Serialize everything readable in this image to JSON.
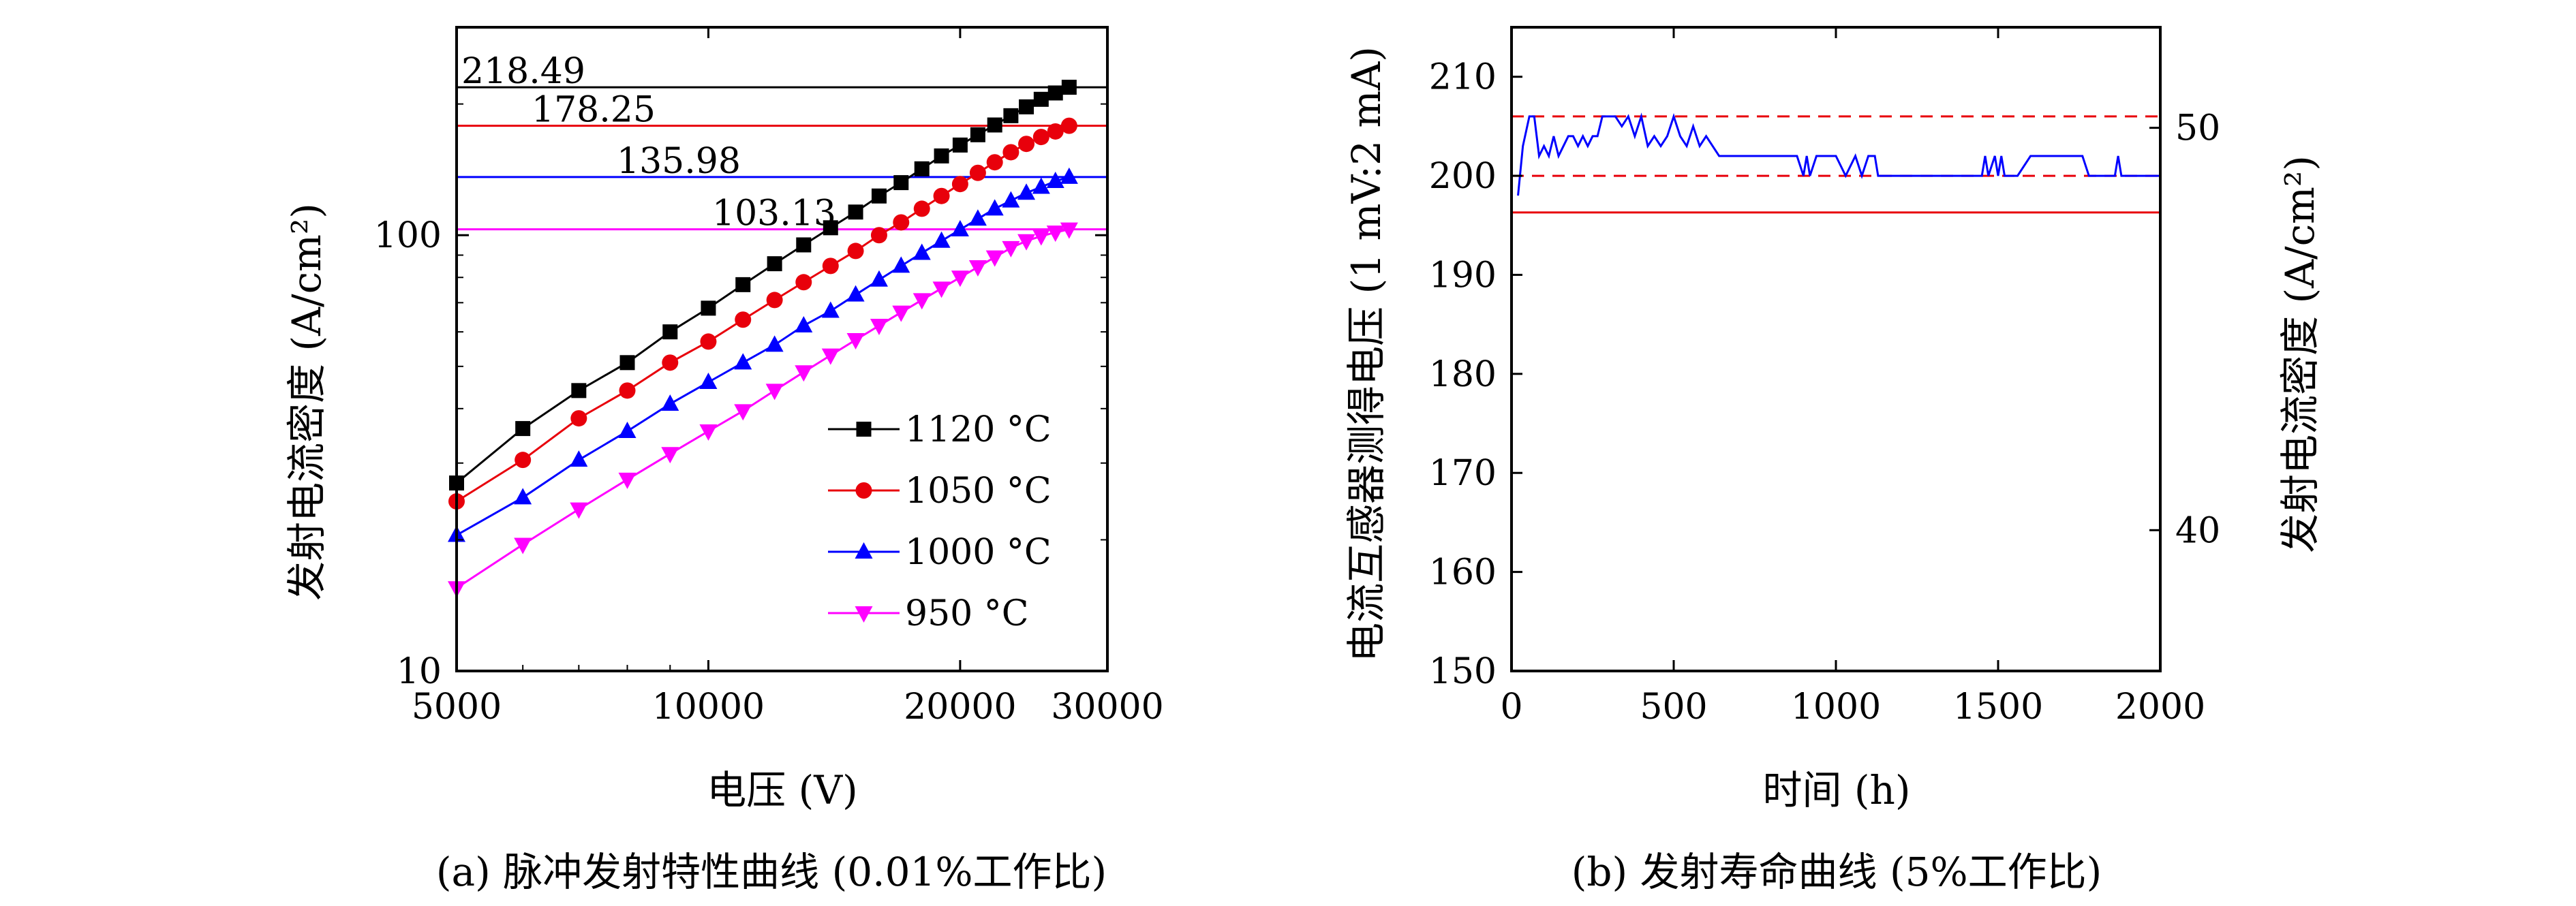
{
  "chart_data": [
    {
      "type": "line",
      "xlabel": "电压 (V)",
      "ylabel": "发射电流密度 (A/cm²)",
      "caption": "(a) 脉冲发射特性曲线 (0.01%工作比)",
      "x_scale": "log",
      "y_scale": "log",
      "xlim": [
        5000,
        30000
      ],
      "ylim": [
        10,
        300
      ],
      "x_tick_labels": [
        "5000",
        "10000",
        "20000",
        "30000"
      ],
      "y_tick_labels": [
        "10",
        "100"
      ],
      "legend_position": "bottom-right",
      "reference_lines": [
        {
          "value": 218.49,
          "label": "218.49",
          "color": "#000000"
        },
        {
          "value": 178.25,
          "label": "178.25",
          "color": "#e8000b"
        },
        {
          "value": 135.98,
          "label": "135.98",
          "color": "#0000ff"
        },
        {
          "value": 103.13,
          "label": "103.13",
          "color": "#ff00ff"
        }
      ],
      "series": [
        {
          "name": "1120 °C",
          "color": "#000000",
          "marker": "square",
          "x": [
            5000,
            6000,
            7000,
            8000,
            9000,
            10000,
            11000,
            12000,
            13000,
            14000,
            15000,
            16000,
            17000,
            18000,
            19000,
            20000,
            21000,
            22000,
            23000,
            24000,
            25000,
            26000,
            27000
          ],
          "y": [
            27,
            36,
            44,
            51,
            60,
            68,
            77,
            86,
            95,
            104,
            113,
            123,
            132,
            142,
            152,
            161,
            170,
            179,
            188,
            197,
            205,
            212,
            218.49
          ]
        },
        {
          "name": "1050 °C",
          "color": "#e8000b",
          "marker": "circle",
          "x": [
            5000,
            6000,
            7000,
            8000,
            9000,
            10000,
            11000,
            12000,
            13000,
            14000,
            15000,
            16000,
            17000,
            18000,
            19000,
            20000,
            21000,
            22000,
            23000,
            24000,
            25000,
            26000,
            27000
          ],
          "y": [
            24.5,
            30.5,
            38,
            44,
            51,
            57,
            64,
            71,
            78,
            85,
            92,
            100,
            107,
            115,
            123,
            131,
            139,
            147,
            155,
            162,
            168,
            173,
            178.25
          ]
        },
        {
          "name": "1000 °C",
          "color": "#0000ff",
          "marker": "triangle-up",
          "x": [
            5000,
            6000,
            7000,
            8000,
            9000,
            10000,
            11000,
            12000,
            13000,
            14000,
            15000,
            16000,
            17000,
            18000,
            19000,
            20000,
            21000,
            22000,
            23000,
            24000,
            25000,
            26000,
            27000
          ],
          "y": [
            20.5,
            25,
            30.5,
            35.5,
            41,
            46,
            51,
            56,
            62,
            67,
            73,
            79,
            85,
            91,
            97,
            103,
            109,
            115,
            120,
            125,
            129,
            133,
            135.98
          ]
        },
        {
          "name": "950 °C",
          "color": "#ff00ff",
          "marker": "triangle-down",
          "x": [
            5000,
            6000,
            7000,
            8000,
            9000,
            10000,
            11000,
            12000,
            13000,
            14000,
            15000,
            16000,
            17000,
            18000,
            19000,
            20000,
            21000,
            22000,
            23000,
            24000,
            25000,
            26000,
            27000
          ],
          "y": [
            15.5,
            19.5,
            23.5,
            27.5,
            31.5,
            35.5,
            39.5,
            44,
            48.5,
            53,
            57.5,
            62,
            66.5,
            71,
            75.5,
            80,
            84.5,
            89,
            93.5,
            97,
            99.5,
            101.5,
            103.13
          ]
        }
      ]
    },
    {
      "type": "line",
      "xlabel": "时间 (h)",
      "ylabel": "电流互感器测得电压 (1 mV:2 mA)",
      "y2label": "发射电流密度 (A/cm²)",
      "caption": "(b) 发射寿命曲线 (5%工作比)",
      "xlim": [
        0,
        2000
      ],
      "ylim": [
        150,
        215
      ],
      "y2lim": [
        36.5,
        52.5
      ],
      "x_tick_labels": [
        "0",
        "500",
        "1000",
        "1500",
        "2000"
      ],
      "y_tick_labels": [
        "150",
        "160",
        "170",
        "180",
        "190",
        "200",
        "210"
      ],
      "y2_tick_labels": [
        "40",
        "50"
      ],
      "reference_lines": [
        {
          "value": 206,
          "color": "#e8000b",
          "style": "dashed"
        },
        {
          "value": 200,
          "color": "#e8000b",
          "style": "dashed"
        },
        {
          "value": 196.3,
          "color": "#e8000b",
          "style": "solid"
        }
      ],
      "series": [
        {
          "name": "",
          "color": "#0000ff",
          "x": [
            20,
            35,
            55,
            70,
            85,
            100,
            115,
            130,
            145,
            160,
            175,
            190,
            205,
            220,
            235,
            250,
            265,
            280,
            300,
            320,
            340,
            360,
            380,
            400,
            420,
            440,
            460,
            480,
            500,
            520,
            540,
            560,
            580,
            600,
            620,
            640,
            660,
            700,
            760,
            820,
            880,
            900,
            910,
            920,
            940,
            980,
            1000,
            1030,
            1060,
            1080,
            1100,
            1120,
            1130,
            1150,
            1200,
            1300,
            1400,
            1450,
            1460,
            1470,
            1490,
            1500,
            1510,
            1520,
            1530,
            1560,
            1600,
            1620,
            1640,
            1700,
            1760,
            1780,
            1800,
            1840,
            1860,
            1870,
            1880,
            1900,
            1920,
            1960,
            2000
          ],
          "y": [
            198,
            203,
            206,
            206,
            202,
            203,
            202,
            204,
            202,
            203,
            204,
            204,
            203,
            204,
            203,
            204,
            204,
            206,
            206,
            206,
            205,
            206,
            204,
            206,
            203,
            204,
            203,
            204,
            206,
            204,
            203,
            205,
            203,
            204,
            203,
            202,
            202,
            202,
            202,
            202,
            202,
            200,
            202,
            200,
            202,
            202,
            202,
            200,
            202,
            200,
            202,
            202,
            200,
            200,
            200,
            200,
            200,
            200,
            202,
            200,
            202,
            200,
            202,
            200,
            200,
            200,
            202,
            202,
            202,
            202,
            202,
            200,
            200,
            200,
            200,
            202,
            200,
            200,
            200,
            200,
            200
          ]
        }
      ]
    }
  ]
}
